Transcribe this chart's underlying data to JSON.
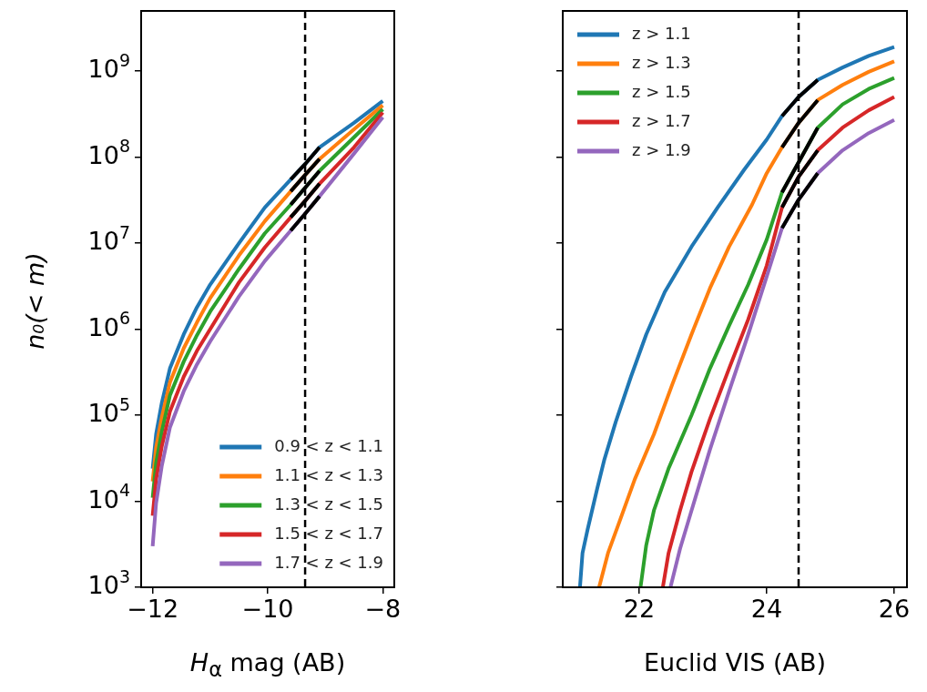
{
  "chart_data": [
    {
      "type": "line",
      "xlabel": "H$_{α}$ mag (AB)",
      "ylabel": "n₀(< m)",
      "log": "y",
      "grid": false,
      "legend": "bottom right",
      "marker": "none",
      "line_style": "solid",
      "xlim": [
        -12.2,
        -7.8
      ],
      "xticks": [
        {
          "value": -12,
          "label": "−12"
        },
        {
          "value": -10,
          "label": "−10"
        },
        {
          "value": -8,
          "label": "−8"
        }
      ],
      "ylim": [
        1000,
        5000000000
      ],
      "yticks": [
        {
          "value": 1000,
          "label": "10$^{3}$"
        },
        {
          "value": 10000,
          "label": "10$^{4}$"
        },
        {
          "value": 100000,
          "label": "10$^{5}$"
        },
        {
          "value": 1000000,
          "label": "10$^{6}$"
        },
        {
          "value": 10000000,
          "label": "10$^{7}$"
        },
        {
          "value": 100000000,
          "label": "10$^{8}$"
        },
        {
          "value": 1000000000,
          "label": "10$^{9}$"
        }
      ],
      "x": [
        -12,
        -11.94,
        -11.84,
        -11.7,
        -11.46,
        -11.23,
        -11,
        -10.5,
        -10.05,
        -9.6,
        -9.35,
        -9.1,
        -8.5,
        -8
      ],
      "series": [
        {
          "name": "0.9 < z < 1.1",
          "color": "#1f77b4",
          "values": [
            24000,
            60000,
            140000,
            350000,
            870000,
            1800000,
            3300000,
            10000000,
            26000000,
            55000000,
            83000000,
            130000000,
            250000000,
            450000000
          ]
        },
        {
          "name": "1.1 < z < 1.3",
          "color": "#ff7f0e",
          "values": [
            17000,
            42000,
            95000,
            240000,
            600000,
            1200000,
            2300000,
            7200000,
            18000000,
            40000000,
            62000000,
            95000000,
            210000000,
            400000000
          ]
        },
        {
          "name": "1.3 < z < 1.5",
          "color": "#2ca02c",
          "values": [
            11000,
            28000,
            65000,
            170000,
            420000,
            850000,
            1600000,
            5000000,
            13000000,
            28000000,
            44000000,
            69000000,
            170000000,
            360000000
          ]
        },
        {
          "name": "1.5 < z < 1.7",
          "color": "#d62728",
          "values": [
            6800,
            18000,
            44000,
            110000,
            280000,
            560000,
            1000000,
            3500000,
            8900000,
            20000000,
            31000000,
            49000000,
            130000000,
            330000000
          ]
        },
        {
          "name": "1.7 < z < 1.9",
          "color": "#9467bd",
          "values": [
            3000,
            9500,
            26000,
            72000,
            190000,
            390000,
            720000,
            2400000,
            6200000,
            14000000,
            22000000,
            35000000,
            110000000,
            290000000
          ]
        },
        {
          "color": "#000000",
          "x": [
            -9.6,
            -9.35,
            -9.1
          ],
          "values": [
            55000000,
            83000000,
            130000000
          ]
        },
        {
          "color": "#000000",
          "x": [
            -9.6,
            -9.35,
            -9.1
          ],
          "values": [
            40000000,
            62000000,
            95000000
          ]
        },
        {
          "color": "#000000",
          "x": [
            -9.6,
            -9.35,
            -9.1
          ],
          "values": [
            28000000,
            44000000,
            69000000
          ]
        },
        {
          "color": "#000000",
          "x": [
            -9.6,
            -9.35,
            -9.1
          ],
          "values": [
            20000000,
            31000000,
            49000000
          ]
        },
        {
          "color": "#000000",
          "x": [
            -9.6,
            -9.35,
            -9.1
          ],
          "values": [
            14000000,
            22000000,
            35000000
          ]
        }
      ],
      "ref_lines": [
        {
          "axis": "x",
          "value": -9.35,
          "color": "#000000",
          "line_style": "dashed"
        }
      ]
    },
    {
      "type": "line",
      "xlabel": "Euclid VIS (AB)",
      "log": "y",
      "grid": false,
      "legend": "top left",
      "marker": "none",
      "line_style": "solid",
      "tick_labels": "x",
      "xlim": [
        20.8,
        26.2
      ],
      "xticks": [
        22,
        24,
        26
      ],
      "ylim": [
        1000,
        5000000000
      ],
      "yticks": [
        {
          "value": 1000,
          "label": null
        },
        {
          "value": 10000,
          "label": null
        },
        {
          "value": 100000,
          "label": null
        },
        {
          "value": 1000000,
          "label": null
        },
        {
          "value": 10000000,
          "label": null
        },
        {
          "value": 100000000,
          "label": null
        },
        {
          "value": 1000000000,
          "label": null
        }
      ],
      "series": [
        {
          "name": "z > 1.1",
          "color": "#1f77b4",
          "x": [
            21.07,
            21.11,
            21.19,
            21.34,
            21.45,
            21.63,
            21.87,
            22.11,
            22.4,
            22.82,
            23.23,
            23.65,
            24,
            24.24,
            24.5,
            24.8,
            25.19,
            25.6,
            26
          ],
          "values": [
            1000,
            2500,
            4700,
            14000,
            30000,
            83000,
            280000,
            870000,
            2700000,
            9100000,
            26000000,
            72000000,
            160000000,
            300000000,
            500000000,
            790000000,
            1100000000,
            1500000000,
            1900000000
          ]
        },
        {
          "name": "z > 1.3",
          "color": "#ff7f0e",
          "x": [
            21.37,
            21.51,
            21.69,
            21.93,
            22.23,
            22.52,
            22.82,
            23.11,
            23.41,
            23.77,
            24,
            24.24,
            24.5,
            24.8,
            25.19,
            25.6,
            26
          ],
          "values": [
            1000,
            2500,
            5800,
            18000,
            60000,
            230000,
            870000,
            3000000,
            9100000,
            28000000,
            65000000,
            130000000,
            250000000,
            460000000,
            690000000,
            980000000,
            1300000000
          ]
        },
        {
          "name": "z > 1.5",
          "color": "#2ca02c",
          "x": [
            22.02,
            22.11,
            22.23,
            22.46,
            22.82,
            23.11,
            23.41,
            23.71,
            24,
            24.24,
            24.5,
            24.8,
            25.19,
            25.6,
            26
          ],
          "values": [
            1000,
            3100,
            7800,
            24000,
            100000,
            350000,
            1100000,
            3300000,
            11000000,
            39000000,
            87000000,
            220000000,
            410000000,
            620000000,
            830000000
          ]
        },
        {
          "name": "z > 1.7",
          "color": "#d62728",
          "x": [
            22.37,
            22.46,
            22.64,
            22.82,
            23.11,
            23.41,
            23.71,
            24,
            24.24,
            24.5,
            24.8,
            25.19,
            25.6,
            26
          ],
          "values": [
            1000,
            2500,
            7800,
            22000,
            91000,
            350000,
            1300000,
            5500000,
            26000000,
            59000000,
            120000000,
            220000000,
            350000000,
            500000000
          ]
        },
        {
          "name": "z > 1.9",
          "color": "#9467bd",
          "x": [
            22.49,
            22.64,
            22.82,
            23.11,
            23.41,
            23.71,
            24,
            24.24,
            24.5,
            24.8,
            25.19,
            25.6,
            26
          ],
          "values": [
            1000,
            2800,
            7800,
            40000,
            190000,
            870000,
            4100000,
            15000000,
            32000000,
            65000000,
            120000000,
            190000000,
            270000000
          ]
        },
        {
          "color": "#000000",
          "x": [
            24.24,
            24.5,
            24.8
          ],
          "values": [
            300000000,
            500000000,
            790000000
          ]
        },
        {
          "color": "#000000",
          "x": [
            24.24,
            24.5,
            24.8
          ],
          "values": [
            130000000,
            250000000,
            460000000
          ]
        },
        {
          "color": "#000000",
          "x": [
            24.24,
            24.5,
            24.8
          ],
          "values": [
            39000000,
            87000000,
            220000000
          ]
        },
        {
          "color": "#000000",
          "x": [
            24.24,
            24.5,
            24.8
          ],
          "values": [
            26000000,
            59000000,
            120000000
          ]
        },
        {
          "color": "#000000",
          "x": [
            24.24,
            24.5,
            24.8
          ],
          "values": [
            15000000,
            32000000,
            65000000
          ]
        }
      ],
      "ref_lines": [
        {
          "axis": "x",
          "value": 24.5,
          "color": "#000000",
          "line_style": "dashed"
        }
      ]
    }
  ]
}
